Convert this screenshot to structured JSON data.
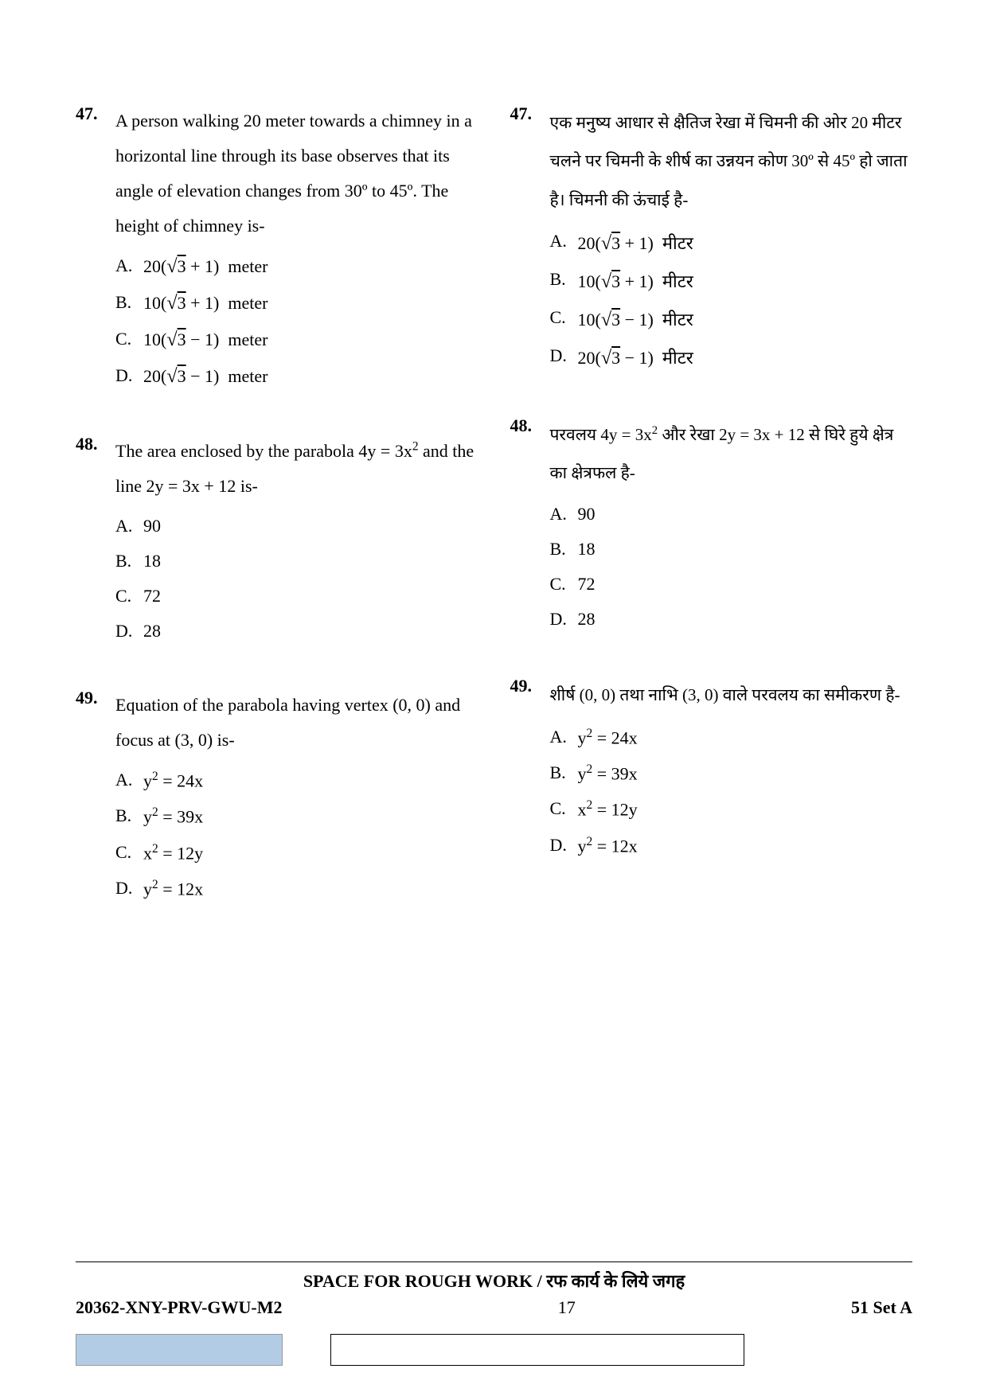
{
  "left": {
    "q47": {
      "number": "47.",
      "stem": "A person walking 20 meter towards a chimney in a horizontal line through its base observes that its angle of elevation changes from 30º to 45º. The height of chimney is-",
      "options": {
        "A": "20(√3 + 1) meter",
        "B": "10(√3 + 1) meter",
        "C": "10(√3 − 1) meter",
        "D": "20(√3 − 1) meter"
      }
    },
    "q48": {
      "number": "48.",
      "stem_pre": "The area enclosed by the parabola ",
      "stem_math1": "4y = 3x²",
      "stem_mid": " and the line ",
      "stem_math2": "2y = 3x + 12",
      "stem_post": " is-",
      "options": {
        "A": "90",
        "B": "18",
        "C": "72",
        "D": "28"
      }
    },
    "q49": {
      "number": "49.",
      "stem": "Equation of the parabola having vertex (0, 0) and focus at (3, 0) is-",
      "options": {
        "A": "y² = 24x",
        "B": "y² = 39x",
        "C": "x² = 12y",
        "D": "y² = 12x"
      }
    }
  },
  "right": {
    "q47": {
      "number": "47.",
      "stem": "एक मनुष्य आधार से क्षैतिज रेखा में चिमनी की ओर 20 मीटर चलने पर चिमनी के शीर्ष का उन्नयन कोण 30º से 45º हो जाता है। चिमनी की ऊंचाई है-",
      "options": {
        "A": "20(√3 + 1) मीटर",
        "B": "10(√3 + 1) मीटर",
        "C": "10(√3 − 1) मीटर",
        "D": "20(√3 − 1) मीटर"
      }
    },
    "q48": {
      "number": "48.",
      "stem_pre": "परवलय ",
      "stem_math1": "4y = 3x²",
      "stem_mid": " और रेखा ",
      "stem_math2": "2y = 3x + 12",
      "stem_post": " से घिरे हुये क्षेत्र का क्षेत्रफल है-",
      "options": {
        "A": "90",
        "B": "18",
        "C": "72",
        "D": "28"
      }
    },
    "q49": {
      "number": "49.",
      "stem": "शीर्ष (0, 0) तथा नाभि (3, 0) वाले परवलय का समीकरण है-",
      "options": {
        "A": "y² = 24x",
        "B": "y² = 39x",
        "C": "x² = 12y",
        "D": "y² = 12x"
      }
    }
  },
  "rough_en": "SPACE FOR ROUGH WORK / ",
  "rough_hi": "रफ कार्य के लिये जगह",
  "footer_left": "20362-XNY-PRV-GWU-M2",
  "footer_center": "17",
  "footer_right": "51  Set A",
  "colors": {
    "text": "#000000",
    "bg": "#ffffff",
    "box_blue": "#b3cce6",
    "border": "#000000"
  }
}
